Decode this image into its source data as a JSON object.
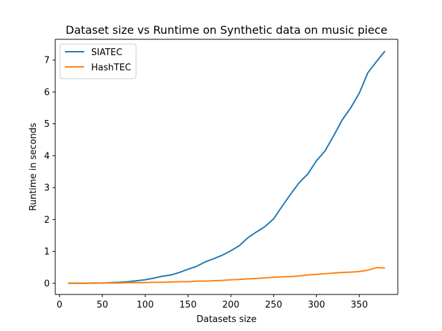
{
  "chart_data": {
    "type": "line",
    "title": "Dataset size vs Runtime on Synthetic data on music piece",
    "xlabel": "Datasets size",
    "ylabel": "Runtime in seconds",
    "xlim": [
      -5,
      395
    ],
    "ylim": [
      -0.35,
      7.65
    ],
    "xticks": [
      0,
      50,
      100,
      150,
      200,
      250,
      300,
      350
    ],
    "yticks": [
      0,
      1,
      2,
      3,
      4,
      5,
      6,
      7
    ],
    "grid": false,
    "legend_position": "upper-left",
    "x": [
      10,
      20,
      30,
      40,
      50,
      60,
      70,
      80,
      90,
      100,
      110,
      120,
      130,
      140,
      150,
      160,
      170,
      180,
      190,
      200,
      210,
      220,
      230,
      240,
      250,
      260,
      270,
      280,
      290,
      300,
      310,
      320,
      330,
      340,
      350,
      360,
      370,
      380
    ],
    "series": [
      {
        "name": "SIATEC",
        "color": "#1f77b4",
        "values": [
          0.0,
          0.0,
          0.0,
          0.01,
          0.01,
          0.02,
          0.03,
          0.05,
          0.08,
          0.11,
          0.16,
          0.22,
          0.26,
          0.34,
          0.44,
          0.53,
          0.67,
          0.77,
          0.88,
          1.02,
          1.18,
          1.43,
          1.61,
          1.78,
          2.02,
          2.42,
          2.8,
          3.16,
          3.43,
          3.84,
          4.15,
          4.62,
          5.12,
          5.5,
          5.96,
          6.6,
          6.95,
          7.28
        ]
      },
      {
        "name": "HashTEC",
        "color": "#ff7f0e",
        "values": [
          0.0,
          0.0,
          0.0,
          0.0,
          0.01,
          0.01,
          0.01,
          0.02,
          0.02,
          0.02,
          0.03,
          0.03,
          0.04,
          0.05,
          0.05,
          0.07,
          0.07,
          0.08,
          0.09,
          0.11,
          0.12,
          0.14,
          0.15,
          0.17,
          0.19,
          0.2,
          0.21,
          0.23,
          0.26,
          0.28,
          0.3,
          0.32,
          0.34,
          0.35,
          0.37,
          0.41,
          0.49,
          0.48
        ]
      }
    ]
  }
}
